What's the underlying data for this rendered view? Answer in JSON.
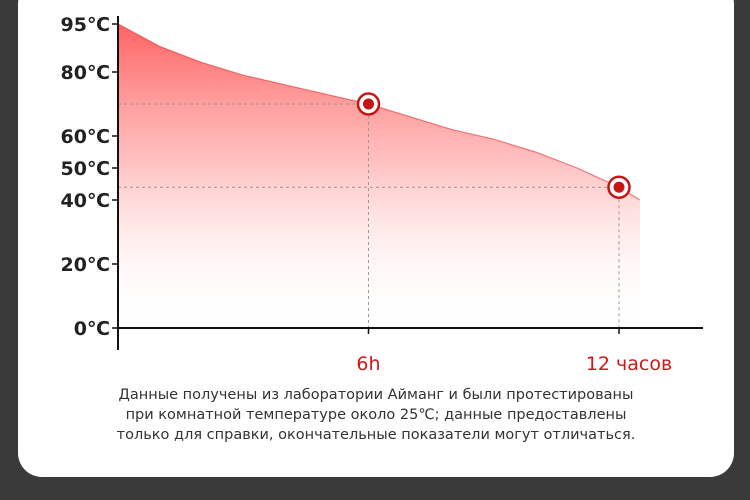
{
  "chart_data": {
    "type": "area",
    "title": "",
    "xlabel": "",
    "ylabel": "",
    "yticks": [
      "0℃",
      "20℃",
      "40℃",
      "50℃",
      "60℃",
      "80℃",
      "95℃"
    ],
    "ytick_values": [
      0,
      20,
      40,
      50,
      60,
      80,
      95
    ],
    "xticks": [
      "6h",
      "12 часов"
    ],
    "xtick_values": [
      6,
      12
    ],
    "ylim": [
      0,
      95
    ],
    "xlim": [
      0,
      14
    ],
    "series": [
      {
        "x": [
          0,
          1,
          2,
          3,
          4,
          5,
          6,
          7,
          8,
          9,
          10,
          11,
          12,
          12.5
        ],
        "y": [
          95,
          88,
          83,
          79,
          76,
          73,
          70,
          66,
          62,
          59,
          55,
          50,
          44,
          40
        ]
      }
    ],
    "highlighted_points": [
      {
        "x": 6,
        "y": 70
      },
      {
        "x": 12,
        "y": 44
      }
    ],
    "colors": {
      "fill_top": "#ff5a5a",
      "fill_bottom": "#ffffff",
      "line": "#e33333",
      "marker": "#c81414",
      "x_tick_label": "#d01818"
    },
    "grid": false
  },
  "footnote": [
    "Данные получены из лаборатории Айманг и были протестированы",
    "при комнатной температуре около 25℃; данные предоставлены",
    "только для справки, окончательные показатели могут отличаться."
  ]
}
